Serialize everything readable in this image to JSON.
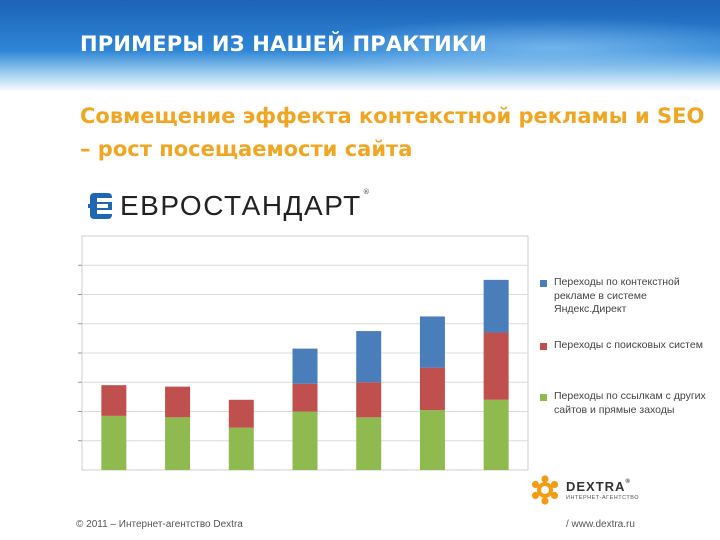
{
  "slide": {
    "title": "ПРИМЕРЫ ИЗ НАШЕЙ ПРАКТИКИ",
    "subtitle": "Совмещение эффекта контекстной рекламы и SEO – рост посещаемости сайта",
    "client_logo": "ЕВРОСТАНДАРТ",
    "client_logo_reg": "®",
    "footer_left": "© 2011 – Интернет-агентство Dextra",
    "footer_right": "/ www.dextra.ru",
    "brand_name": "DEXTRA",
    "brand_reg": "®",
    "brand_tagline": "ИНТЕРНЕТ-АГЕНТСТВО"
  },
  "colors": {
    "green": "#8fba4f",
    "red": "#c0504d",
    "blue": "#4a7ebb",
    "title_orange": "#f0a623",
    "brand_orange": "#f39c12"
  },
  "chart_data": {
    "type": "bar",
    "stacked": true,
    "categories": [
      "",
      "",
      "",
      "",
      "",
      "",
      ""
    ],
    "ylim": [
      0,
      8
    ],
    "grid": true,
    "legend_position": "right",
    "series": [
      {
        "name": "Переходы по ссылкам с других сайтов и прямые заходы",
        "color": "#8fba4f",
        "values": [
          1.85,
          1.8,
          1.45,
          2.0,
          1.8,
          2.05,
          2.4
        ]
      },
      {
        "name": "Переходы с поисковых систем",
        "color": "#c0504d",
        "values": [
          1.05,
          1.05,
          0.95,
          0.95,
          1.2,
          1.45,
          2.3
        ]
      },
      {
        "name": "Переходы по контекстной рекламе в системе Яндекс.Директ",
        "color": "#4a7ebb",
        "values": [
          0,
          0,
          0,
          1.2,
          1.75,
          1.75,
          1.8
        ]
      }
    ]
  }
}
